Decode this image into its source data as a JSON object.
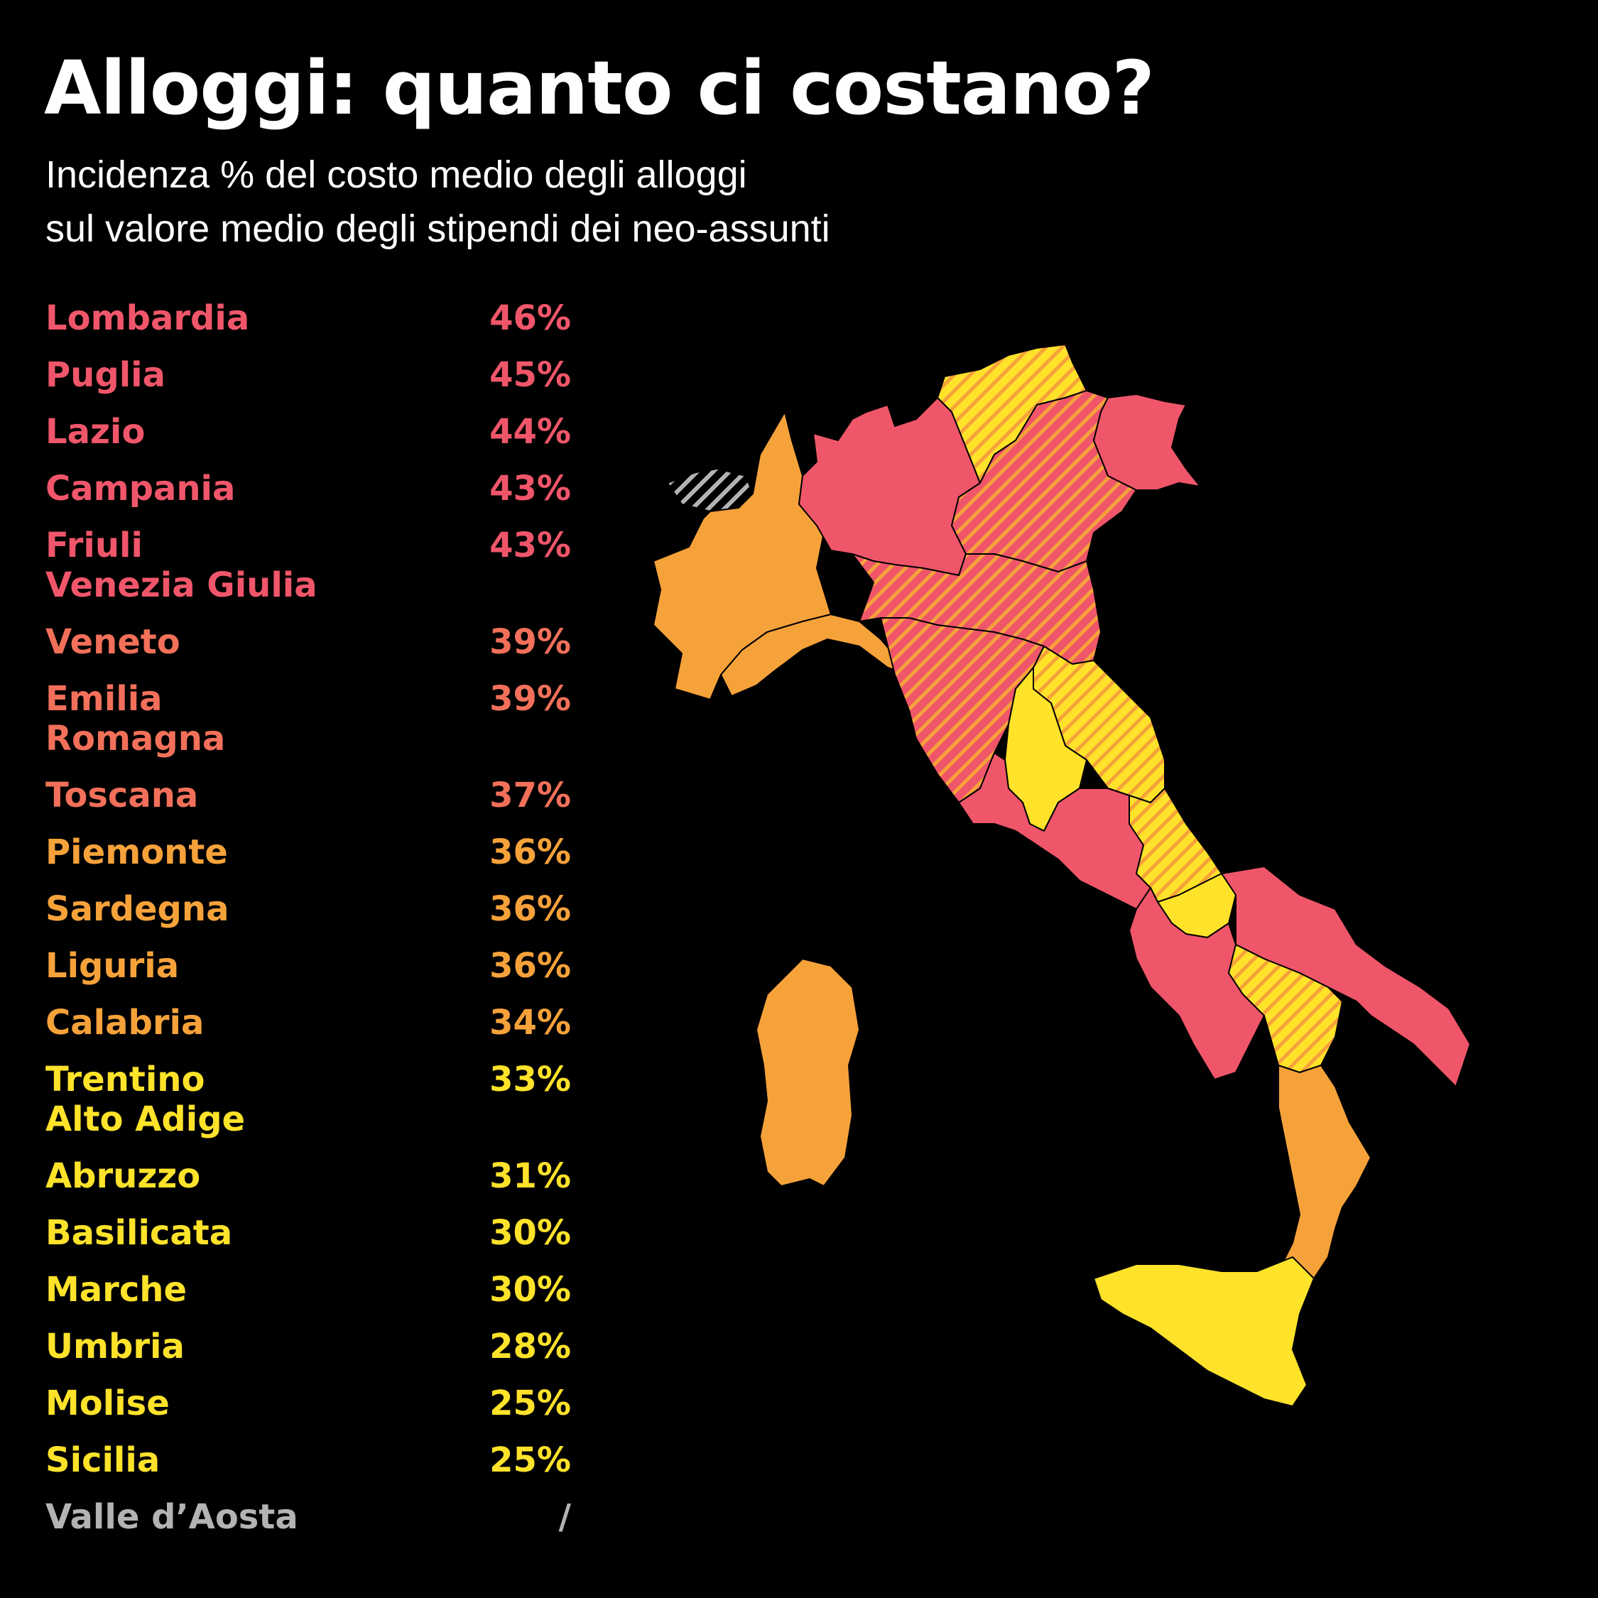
{
  "title": "Alloggi: quanto ci costano?",
  "subtitle": {
    "line1": "Incidenza % del costo medio degli alloggi",
    "line2": "sul valore medio degli stipendi dei neo-assunti"
  },
  "colors": {
    "high": "#F0566A",
    "mid_high": "#F2705A",
    "mid": "#F6A23A",
    "low": "#FFE22A",
    "none": "#B3B3B3",
    "background": "#000000"
  },
  "regions": [
    {
      "lines": [
        "Lombardia"
      ],
      "value": "46%",
      "tier": "high"
    },
    {
      "lines": [
        "Puglia"
      ],
      "value": "45%",
      "tier": "high"
    },
    {
      "lines": [
        "Lazio"
      ],
      "value": "44%",
      "tier": "high"
    },
    {
      "lines": [
        "Campania"
      ],
      "value": "43%",
      "tier": "high"
    },
    {
      "lines": [
        "Friuli",
        "Venezia Giulia"
      ],
      "value": "43%",
      "tier": "high"
    },
    {
      "lines": [
        "Veneto"
      ],
      "value": "39%",
      "tier": "mid_high"
    },
    {
      "lines": [
        "Emilia",
        "Romagna"
      ],
      "value": "39%",
      "tier": "mid_high"
    },
    {
      "lines": [
        "Toscana"
      ],
      "value": "37%",
      "tier": "mid_high"
    },
    {
      "lines": [
        "Piemonte"
      ],
      "value": "36%",
      "tier": "mid"
    },
    {
      "lines": [
        "Sardegna"
      ],
      "value": "36%",
      "tier": "mid"
    },
    {
      "lines": [
        "Liguria"
      ],
      "value": "36%",
      "tier": "mid"
    },
    {
      "lines": [
        "Calabria"
      ],
      "value": "34%",
      "tier": "mid"
    },
    {
      "lines": [
        "Trentino",
        "Alto Adige"
      ],
      "value": "33%",
      "tier": "low"
    },
    {
      "lines": [
        "Abruzzo"
      ],
      "value": "31%",
      "tier": "low"
    },
    {
      "lines": [
        "Basilicata"
      ],
      "value": "30%",
      "tier": "low"
    },
    {
      "lines": [
        "Marche"
      ],
      "value": "30%",
      "tier": "low"
    },
    {
      "lines": [
        "Umbria"
      ],
      "value": "28%",
      "tier": "low"
    },
    {
      "lines": [
        "Molise"
      ],
      "value": "25%",
      "tier": "low"
    },
    {
      "lines": [
        "Sicilia"
      ],
      "value": "25%",
      "tier": "low"
    },
    {
      "lines": [
        "Valle d’Aosta"
      ],
      "value": "/",
      "tier": "none"
    }
  ]
}
